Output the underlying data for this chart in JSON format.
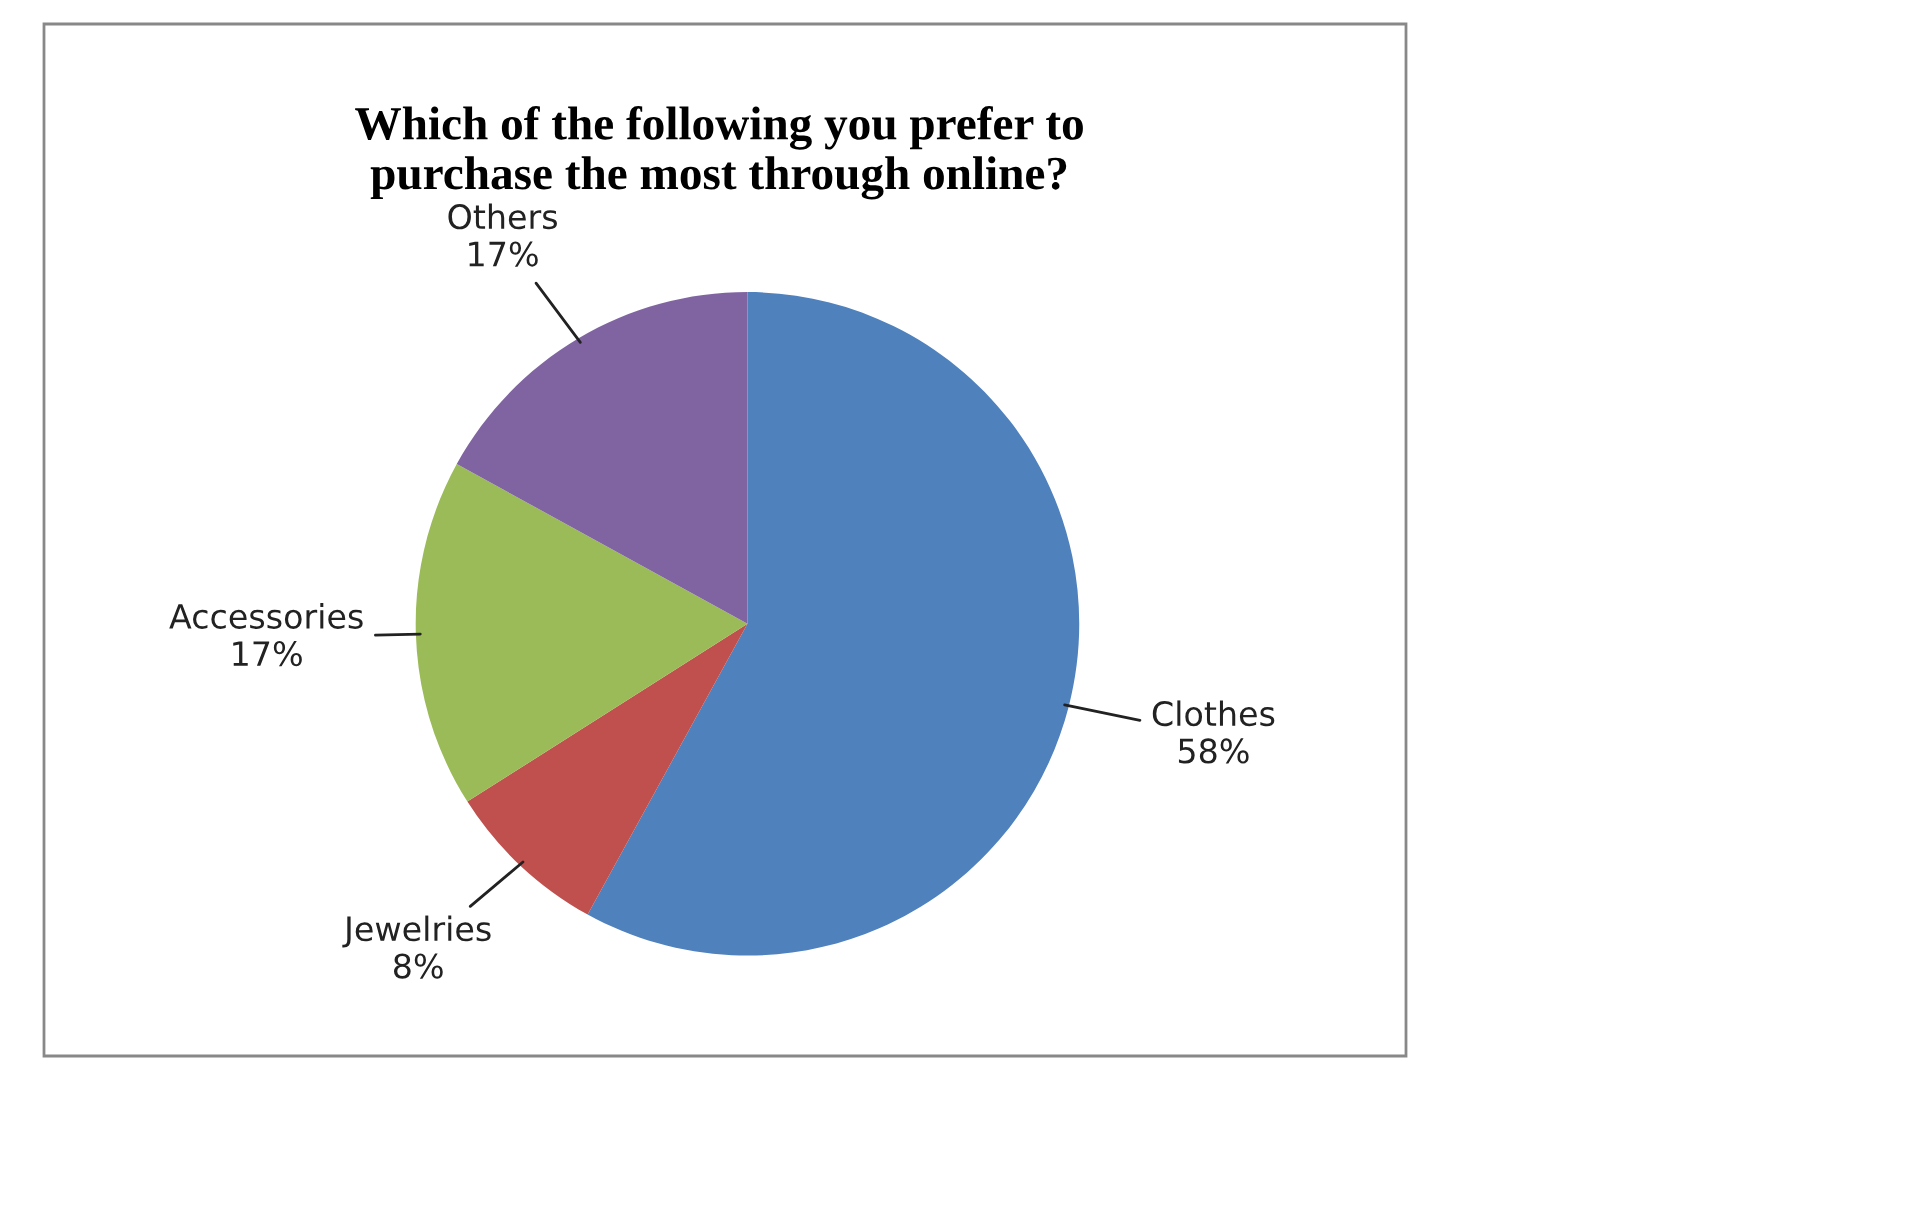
{
  "chart_data": {
    "type": "pie",
    "title": "Which of the following you prefer to\npurchase the most through online?",
    "categories": [
      "Clothes",
      "Jewelries",
      "Accessories",
      "Others"
    ],
    "values": [
      58,
      8,
      17,
      17
    ],
    "value_labels": [
      "58%",
      "8%",
      "17%",
      "17%"
    ],
    "colors": [
      "#4f81bd",
      "#c0504d",
      "#9bbb59",
      "#8064a2"
    ]
  }
}
